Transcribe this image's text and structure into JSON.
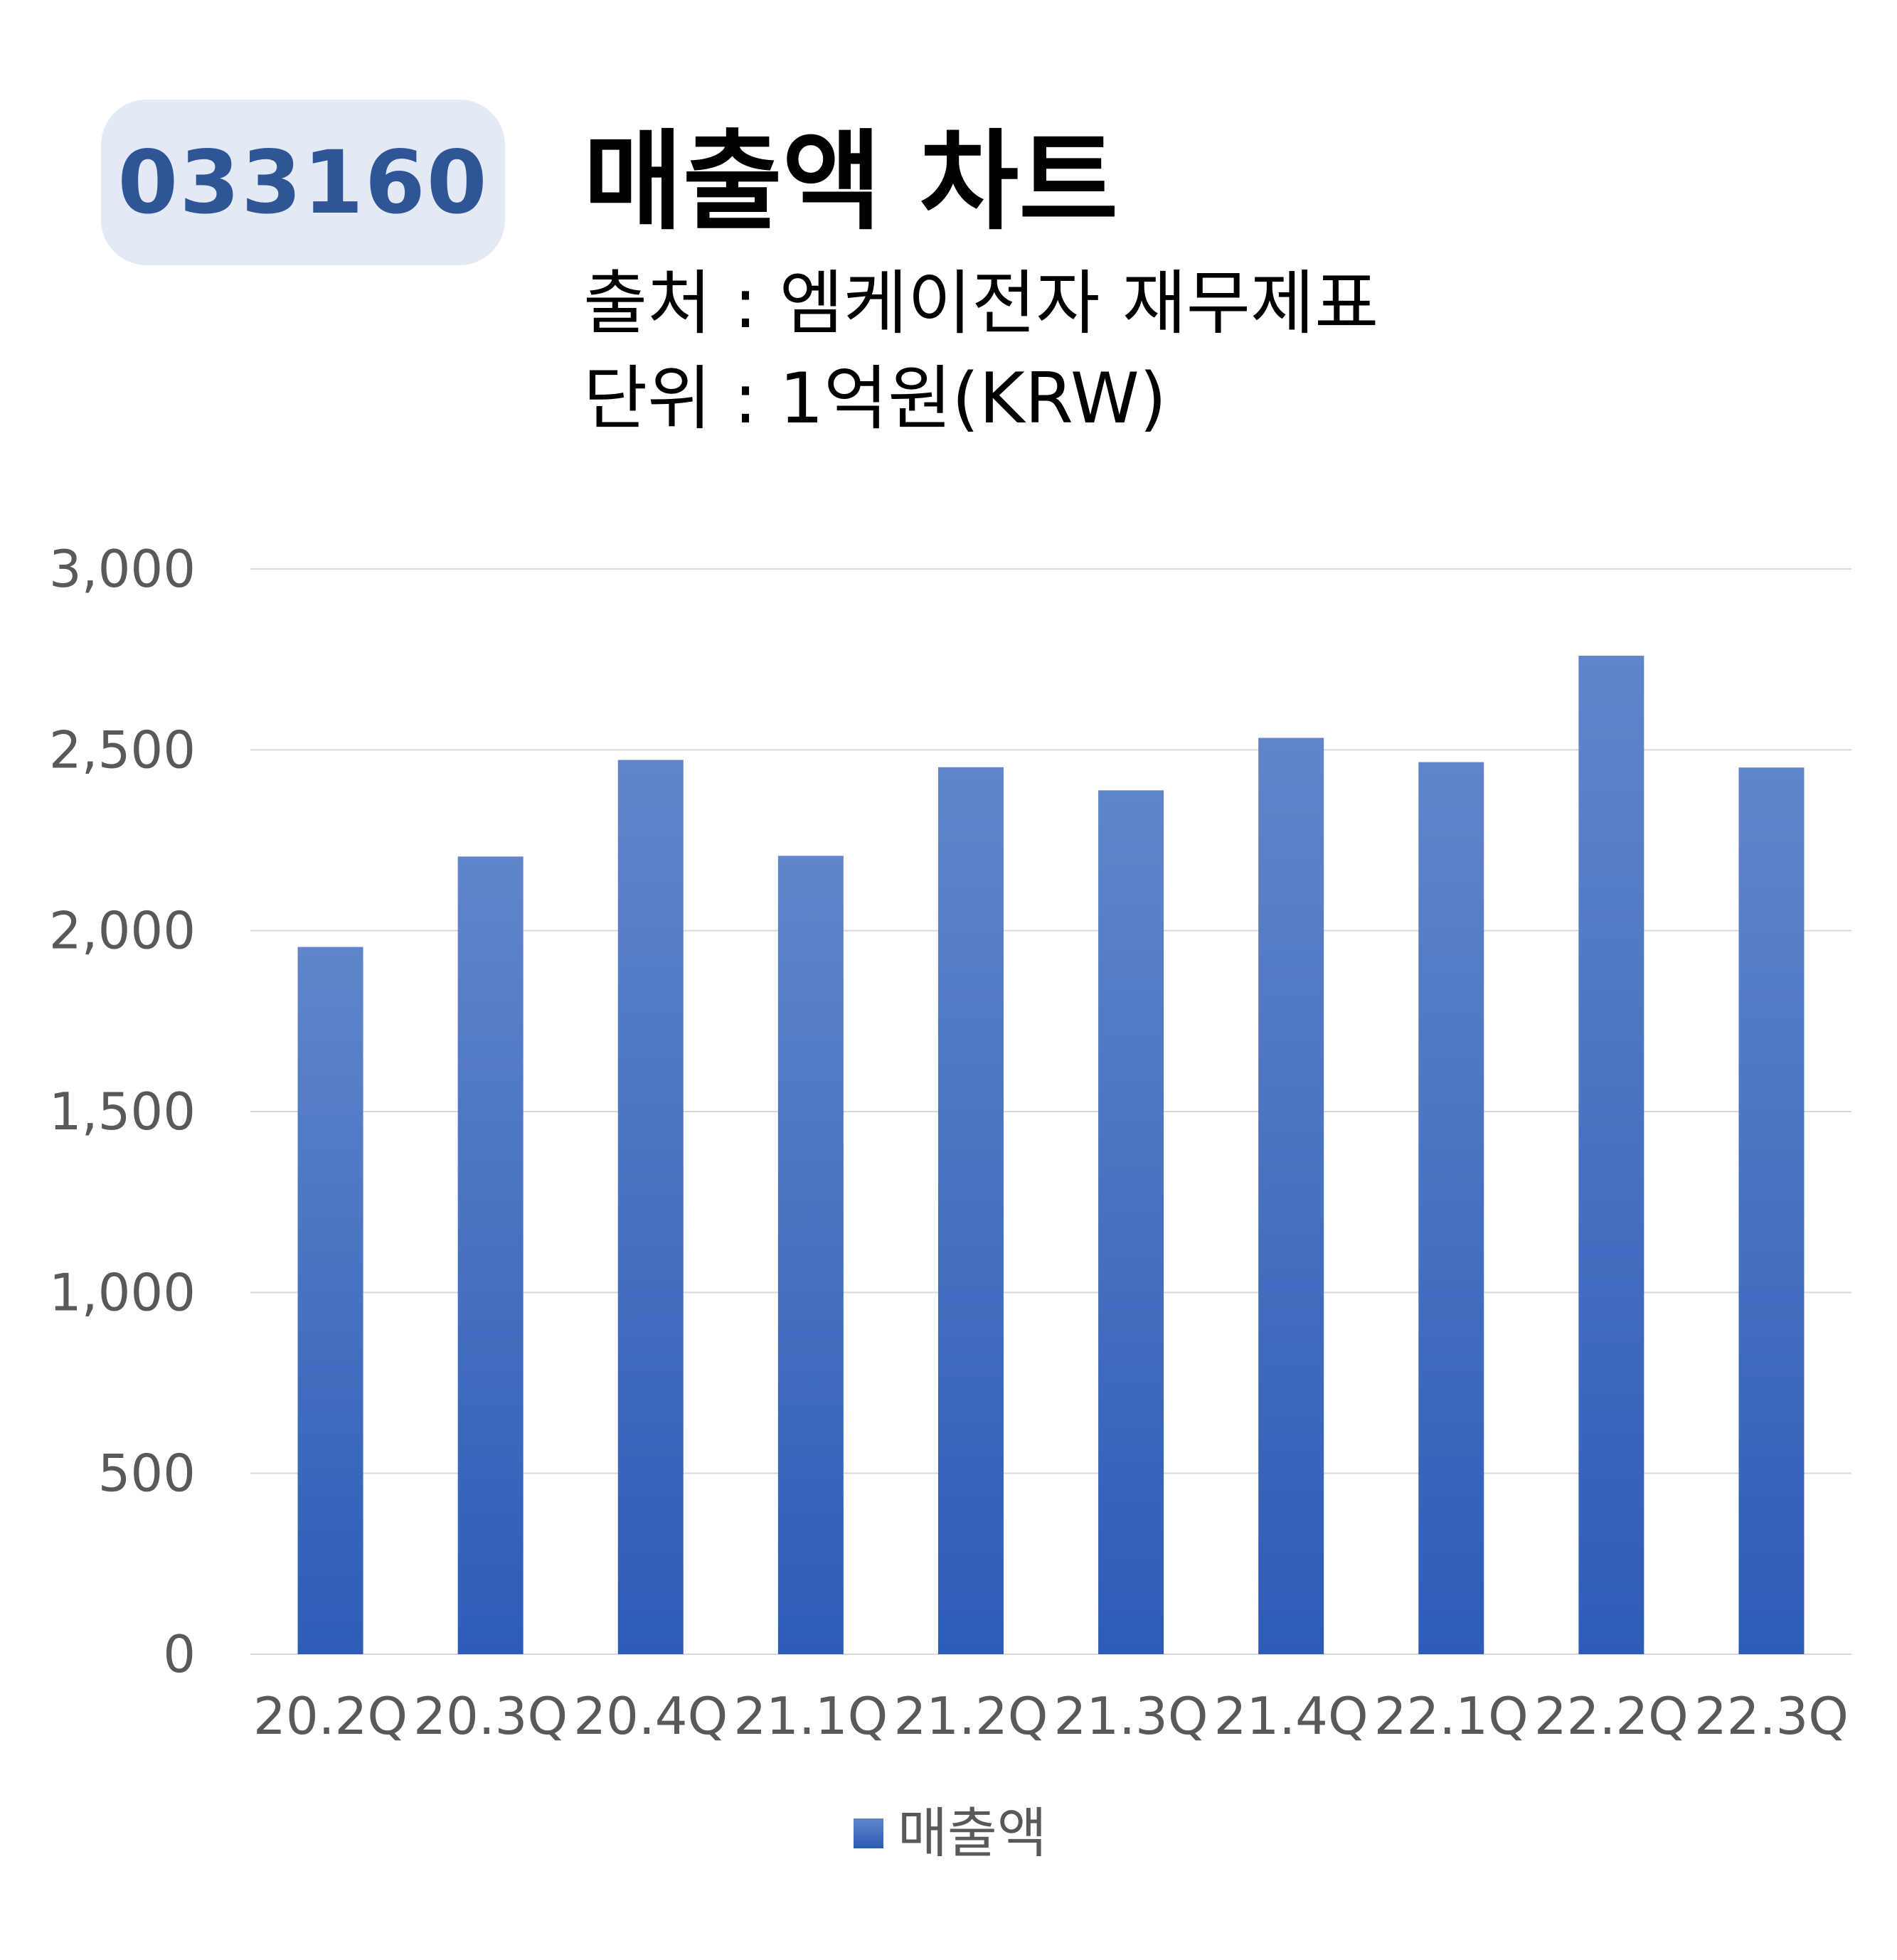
{
  "header": {
    "ticker": "033160",
    "title": "매출액 차트",
    "source": "출처 : 엠케이전자 재무제표",
    "unit": "단위 : 1억원(KRW)"
  },
  "colors": {
    "bar_top": "#6185ca",
    "bar_bottom": "#2d5cb7",
    "badge_bg": "#e4e9f6",
    "badge_text": "#2f5596",
    "grid": "#d9d9d9",
    "tick_text": "#595959"
  },
  "chart_data": {
    "type": "bar",
    "categories": [
      "20.2Q",
      "20.3Q",
      "20.4Q",
      "21.1Q",
      "21.2Q",
      "21.3Q",
      "21.4Q",
      "22.1Q",
      "22.2Q",
      "22.3Q"
    ],
    "series": [
      {
        "name": "매출액",
        "values": [
          1955,
          2205,
          2472,
          2207,
          2452,
          2388,
          2533,
          2466,
          2760,
          2451
        ]
      }
    ],
    "ylim": [
      0,
      3000
    ],
    "yticks": [
      0,
      500,
      1000,
      1500,
      2000,
      2500,
      3000
    ],
    "ytick_labels": [
      "0",
      "500",
      "1,000",
      "1,500",
      "2,000",
      "2,500",
      "3,000"
    ],
    "grid": true,
    "legend_position": "bottom"
  }
}
